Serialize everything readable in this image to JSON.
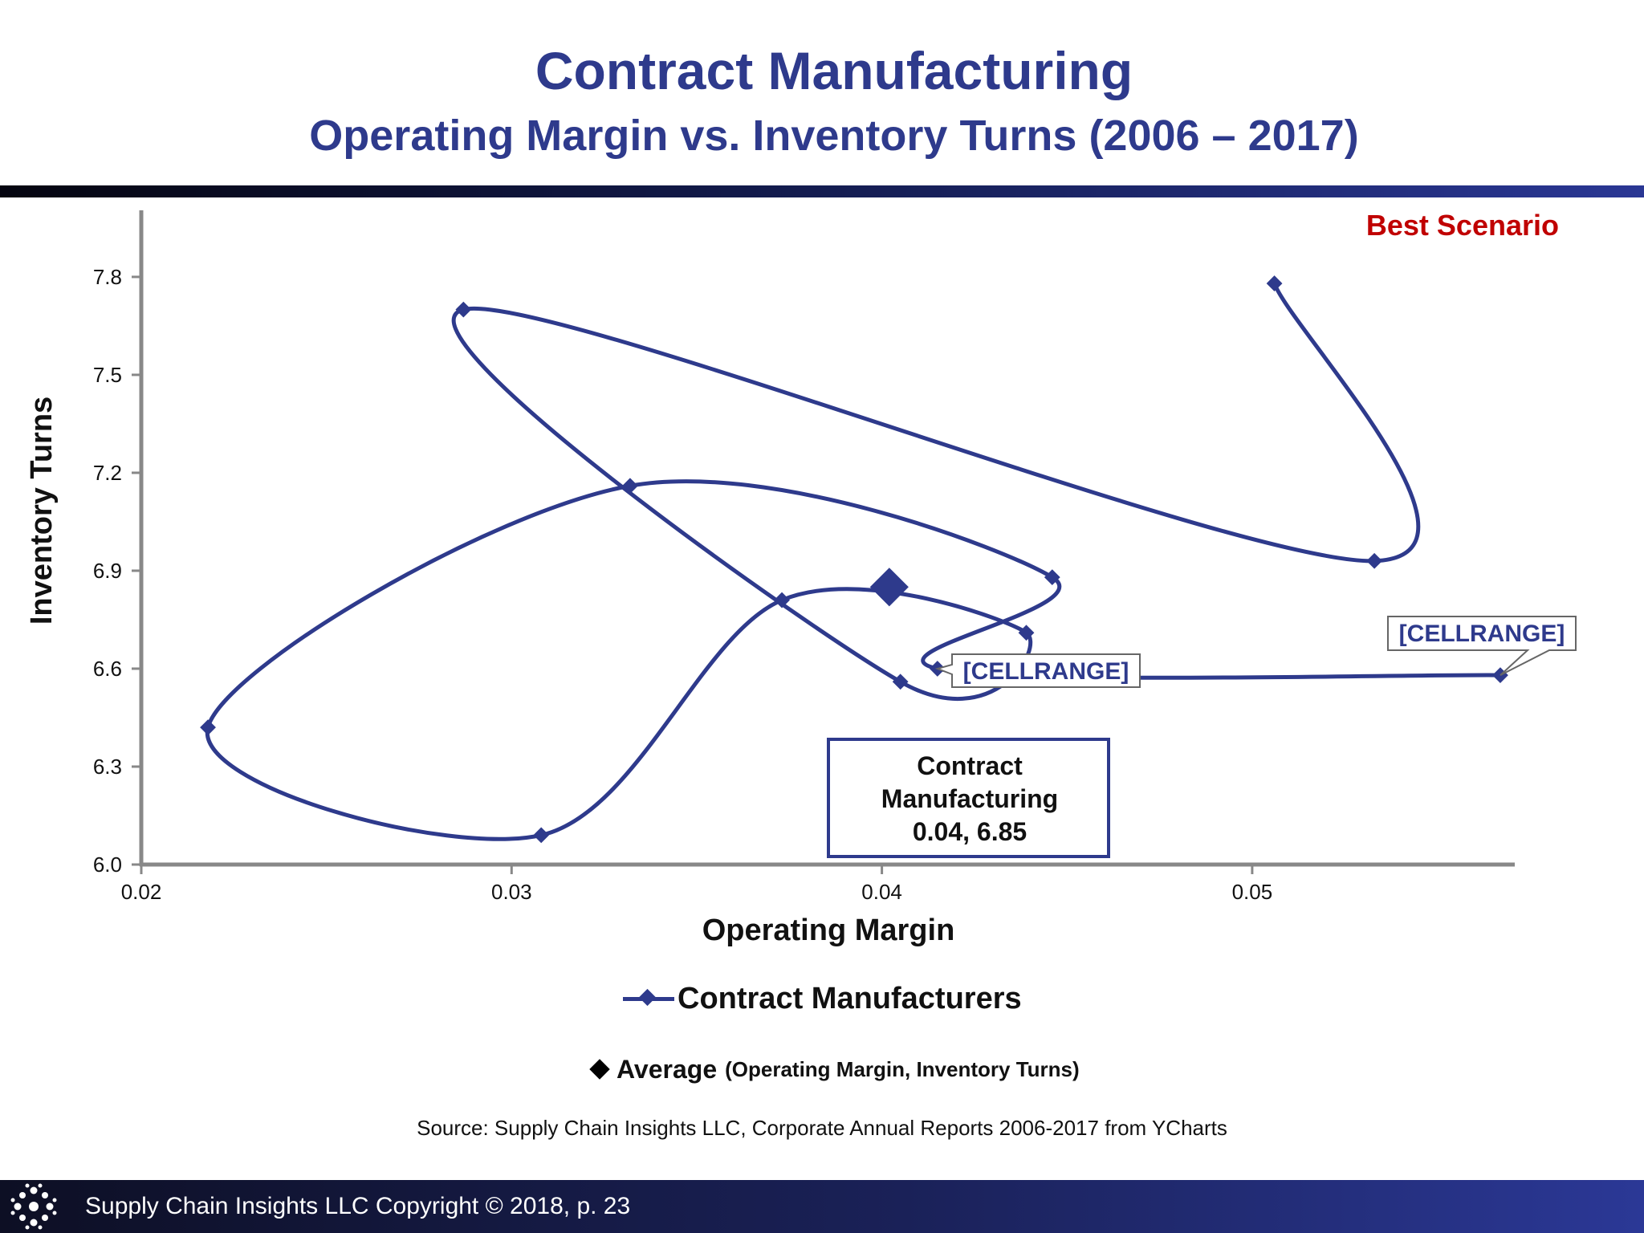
{
  "header": {
    "title": "Contract Manufacturing",
    "subtitle": "Operating Margin vs. Inventory Turns (2006 – 2017)"
  },
  "chart_data": {
    "type": "scatter",
    "title": "Contract Manufacturing",
    "subtitle": "Operating Margin vs. Inventory Turns (2006 – 2017)",
    "xlabel": "Operating Margin",
    "ylabel": "Inventory Turns",
    "xlim": [
      0.02,
      0.057
    ],
    "ylim": [
      6.0,
      7.98
    ],
    "x_ticks": [
      "0.02",
      "0.03",
      "0.04",
      "0.05"
    ],
    "y_ticks": [
      "6.0",
      "6.3",
      "6.6",
      "6.9",
      "7.2",
      "7.5",
      "7.8"
    ],
    "grid": false,
    "line_style": "smoothed",
    "series": [
      {
        "name": "Contract Manufacturers",
        "x": [
          0.0506,
          0.0533,
          0.0287,
          0.0405,
          0.0439,
          0.0373,
          0.0308,
          0.0218,
          0.0332,
          0.0446,
          0.0415,
          0.0567
        ],
        "y": [
          7.78,
          6.93,
          7.7,
          6.56,
          6.71,
          6.81,
          6.09,
          6.42,
          7.16,
          6.88,
          6.6,
          6.58
        ],
        "color": "#2e3a8c"
      }
    ],
    "average": {
      "x": 0.0402,
      "y": 6.85,
      "color": "#2e3a8c"
    },
    "annotations": [
      {
        "text": "Best Scenario",
        "color": "#c00000"
      },
      {
        "text": "Contract Manufacturing",
        "value": "0.04, 6.85"
      },
      {
        "text": "[CELLRANGE]"
      },
      {
        "text": "[CELLRANGE]"
      }
    ],
    "legend": [
      {
        "label": "Contract Manufacturers"
      },
      {
        "label": "Average",
        "detail": "(Operating Margin, Inventory Turns)"
      }
    ]
  },
  "source": "Source:  Supply Chain Insights LLC, Corporate Annual Reports 2006-2017 from YCharts",
  "footer": {
    "text": "Supply Chain Insights LLC Copyright © 2018, p. 23"
  }
}
